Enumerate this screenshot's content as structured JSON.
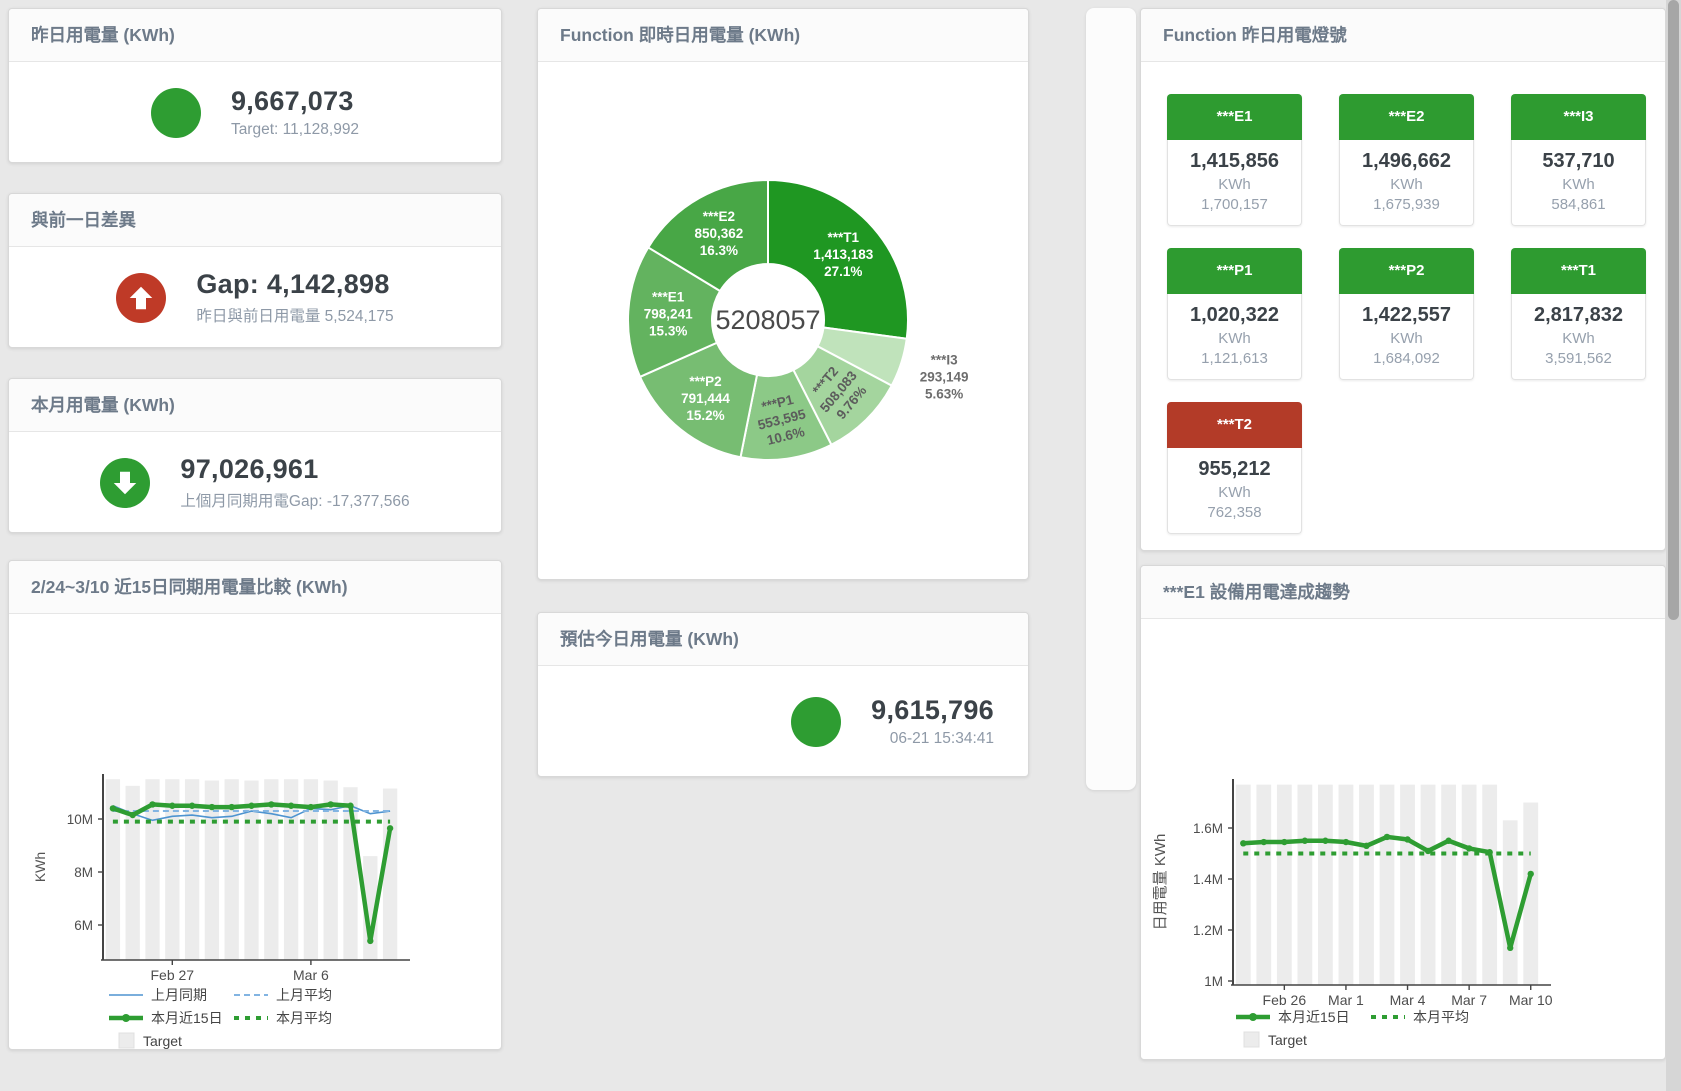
{
  "theme": {
    "green": "#2e9d32",
    "red": "#bf3a27",
    "tile_green": "#2e9b30",
    "tile_red": "#b33b28",
    "blue": "#4e94d0",
    "blue_light": "#82b4e2",
    "bar_gray": "#ececec",
    "header_text": "#6d7a89",
    "value_text": "#3b4248",
    "sub_text": "#8e99a7"
  },
  "cards": {
    "yesterday": {
      "title": "昨日用電量 (KWh)",
      "value": "9,667,073",
      "subtext": "Target: 11,128,992",
      "indicator": "green-circle"
    },
    "day_gap": {
      "title": "與前一日差異",
      "value": "Gap: 4,142,898",
      "subtext": "昨日與前日用電量 5,524,175",
      "indicator": "red-up-arrow"
    },
    "month": {
      "title": "本月用電量 (KWh)",
      "value": "97,026,961",
      "subtext": "上個月同期用電Gap: -17,377,566",
      "indicator": "green-down-arrow"
    },
    "estimate": {
      "title": "預估今日用電量 (KWh)",
      "value": "9,615,796",
      "subtext": "06-21 15:34:41",
      "indicator": "green-circle"
    }
  },
  "lamp_panel": {
    "title": "Function 昨日用電燈號",
    "unit": "KWh",
    "tiles": [
      {
        "name": "***E1",
        "value": "1,415,856",
        "target": "1,700,157",
        "status": "green"
      },
      {
        "name": "***E2",
        "value": "1,496,662",
        "target": "1,675,939",
        "status": "green"
      },
      {
        "name": "***I3",
        "value": "537,710",
        "target": "584,861",
        "status": "green"
      },
      {
        "name": "***P1",
        "value": "1,020,322",
        "target": "1,121,613",
        "status": "green"
      },
      {
        "name": "***P2",
        "value": "1,422,557",
        "target": "1,684,092",
        "status": "green"
      },
      {
        "name": "***T1",
        "value": "2,817,832",
        "target": "3,591,562",
        "status": "green"
      },
      {
        "name": "***T2",
        "value": "955,212",
        "target": "762,358",
        "status": "red"
      }
    ]
  },
  "chart_data": [
    {
      "id": "realtime_donut",
      "type": "pie",
      "title": "Function 即時日用電量 (KWh)",
      "center_total": "5208057",
      "slices": [
        {
          "name": "***T1",
          "value": 1413183,
          "value_label": "1,413,183",
          "pct_label": "27.1%",
          "color": "#1f9722",
          "label_rotate": 0,
          "label_outside": false,
          "label_color": "#ffffff"
        },
        {
          "name": "***I3",
          "value": 293149,
          "value_label": "293,149",
          "pct_label": "5.63%",
          "color": "#c0e3bb",
          "label_rotate": 0,
          "label_outside": true,
          "label_color": "#6d6d6d"
        },
        {
          "name": "***T2",
          "value": 508083,
          "value_label": "508,083",
          "pct_label": "9.76%",
          "color": "#a4d59e",
          "label_rotate": -50,
          "label_outside": false,
          "label_color": "#5c5c5c"
        },
        {
          "name": "***P1",
          "value": 553595,
          "value_label": "553,595",
          "pct_label": "10.6%",
          "color": "#8cc987",
          "label_rotate": -14,
          "label_outside": false,
          "label_color": "#5c5c5c"
        },
        {
          "name": "***P2",
          "value": 791444,
          "value_label": "791,444",
          "pct_label": "15.2%",
          "color": "#77bd72",
          "label_rotate": 0,
          "label_outside": false,
          "label_color": "#ffffff"
        },
        {
          "name": "***E1",
          "value": 798241,
          "value_label": "798,241",
          "pct_label": "15.3%",
          "color": "#63b35f",
          "label_rotate": 0,
          "label_outside": false,
          "label_color": "#ffffff"
        },
        {
          "name": "***E2",
          "value": 850362,
          "value_label": "850,362",
          "pct_label": "16.3%",
          "color": "#48a746",
          "label_rotate": 0,
          "label_outside": false,
          "label_color": "#ffffff"
        }
      ]
    },
    {
      "id": "compare15",
      "type": "line",
      "title": "2/24~3/10 近15日同期用電量比較 (KWh)",
      "ylabel": "KWh",
      "categories": [
        "2/24",
        "2/25",
        "2/26",
        "2/27",
        "2/28",
        "3/1",
        "3/2",
        "3/3",
        "3/4",
        "3/5",
        "3/6",
        "3/7",
        "3/8",
        "3/9",
        "3/10"
      ],
      "ymin": 4680000,
      "ymax": 11750000,
      "yticks": [
        {
          "value": 6000000,
          "label": "6M"
        },
        {
          "value": 8000000,
          "label": "8M"
        },
        {
          "value": 10000000,
          "label": "10M"
        }
      ],
      "xticks": [
        {
          "index": 3,
          "label": "Feb 27"
        },
        {
          "index": 10,
          "label": "Mar 6"
        }
      ],
      "target_bars": {
        "name": "Target",
        "values": [
          11500000,
          11250000,
          11500000,
          11500000,
          11500000,
          11450000,
          11500000,
          11450000,
          11500000,
          11500000,
          11500000,
          11450000,
          11200000,
          8600000,
          11150000
        ]
      },
      "series": [
        {
          "name": "上月同期",
          "style": "thin",
          "color": "#4e94d0",
          "values": [
            10500000,
            10200000,
            9950000,
            10100000,
            10150000,
            10050000,
            10100000,
            10300000,
            10200000,
            10050000,
            10400000,
            10350000,
            10500000,
            10200000,
            10300000
          ]
        },
        {
          "name": "上月平均",
          "style": "dashed",
          "color": "#82b4e2",
          "values": [
            10300000,
            10300000,
            10300000,
            10300000,
            10300000,
            10300000,
            10300000,
            10300000,
            10300000,
            10300000,
            10300000,
            10300000,
            10300000,
            10300000,
            10300000
          ]
        },
        {
          "name": "本月近15日",
          "style": "thick",
          "color": "#2e9d32",
          "values": [
            10400000,
            10150000,
            10550000,
            10500000,
            10500000,
            10450000,
            10450000,
            10500000,
            10550000,
            10500000,
            10450000,
            10550000,
            10500000,
            5400000,
            9650000
          ]
        },
        {
          "name": "本月平均",
          "style": "dotted",
          "color": "#2e9d32",
          "values": [
            9900000,
            9900000,
            9900000,
            9900000,
            9900000,
            9900000,
            9900000,
            9900000,
            9900000,
            9900000,
            9900000,
            9900000,
            9900000,
            9900000,
            9900000
          ]
        }
      ],
      "legend_rows": [
        [
          "上月同期",
          "上月平均"
        ],
        [
          "本月近15日",
          "本月平均"
        ],
        [
          "Target"
        ]
      ]
    },
    {
      "id": "e1_trend",
      "type": "line",
      "title": "***E1 設備用電達成趨勢",
      "ylabel": "日用電量 KWh",
      "categories": [
        "2/24",
        "2/25",
        "2/26",
        "2/27",
        "2/28",
        "3/1",
        "3/2",
        "3/3",
        "3/4",
        "3/5",
        "3/6",
        "3/7",
        "3/8",
        "3/9",
        "3/10"
      ],
      "ymin": 985000,
      "ymax": 1800000,
      "yticks": [
        {
          "value": 1000000,
          "label": "1M"
        },
        {
          "value": 1200000,
          "label": "1.2M"
        },
        {
          "value": 1400000,
          "label": "1.4M"
        },
        {
          "value": 1600000,
          "label": "1.6M"
        }
      ],
      "xticks": [
        {
          "index": 2,
          "label": "Feb 26"
        },
        {
          "index": 5,
          "label": "Mar 1"
        },
        {
          "index": 8,
          "label": "Mar 4"
        },
        {
          "index": 11,
          "label": "Mar 7"
        },
        {
          "index": 14,
          "label": "Mar 10"
        }
      ],
      "target_bars": {
        "name": "Target",
        "values": [
          1770000,
          1770000,
          1770000,
          1770000,
          1770000,
          1770000,
          1770000,
          1770000,
          1770000,
          1770000,
          1770000,
          1770000,
          1770000,
          1630000,
          1700000
        ]
      },
      "series": [
        {
          "name": "本月近15日",
          "style": "thick",
          "color": "#2e9d32",
          "values": [
            1540000,
            1545000,
            1545000,
            1550000,
            1550000,
            1545000,
            1530000,
            1565000,
            1555000,
            1510000,
            1550000,
            1520000,
            1505000,
            1130000,
            1420000
          ]
        },
        {
          "name": "本月平均",
          "style": "dotted",
          "color": "#2e9d32",
          "values": [
            1500000,
            1500000,
            1500000,
            1500000,
            1500000,
            1500000,
            1500000,
            1500000,
            1500000,
            1500000,
            1500000,
            1500000,
            1500000,
            1500000,
            1500000
          ]
        }
      ],
      "legend_rows": [
        [
          "本月近15日",
          "本月平均"
        ],
        [
          "Target"
        ]
      ]
    }
  ]
}
